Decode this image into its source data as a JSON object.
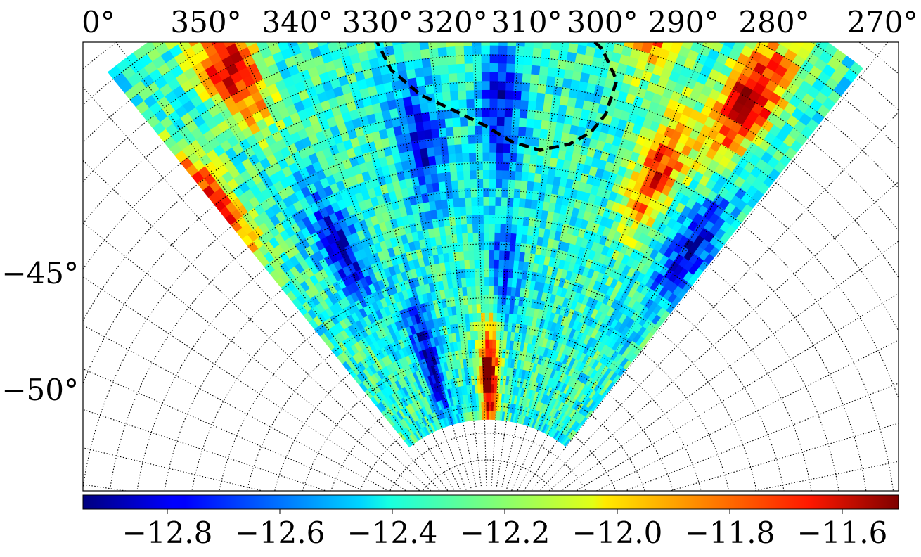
{
  "chart_data": {
    "type": "heatmap",
    "projection": "polar sky map (sector)",
    "longitude_ticks": [
      "0°",
      "350°",
      "340°",
      "330°",
      "320°",
      "310°",
      "300°",
      "290°",
      "280°",
      "270°"
    ],
    "latitude_ticks": [
      "−45°",
      "−50°"
    ],
    "colormap": "jet",
    "colorbar": {
      "orientation": "horizontal",
      "range": [
        -12.95,
        -11.5
      ],
      "ticks": [
        "−12.8",
        "−12.6",
        "−12.4",
        "−12.2",
        "−12.0",
        "−11.8",
        "−11.6"
      ]
    },
    "grid": true,
    "grid_style": "dotted",
    "contour": {
      "style": "dashed",
      "color": "#000000"
    },
    "regions": [
      {
        "name": "high_left_edge",
        "lon": 353,
        "lat": -44,
        "value": -11.5
      },
      {
        "name": "high_upper_left",
        "lon": 342,
        "lat": -40,
        "value": -11.6
      },
      {
        "name": "high_top_center",
        "lon": 318,
        "lat": -38,
        "value": -11.6
      },
      {
        "name": "high_top_right",
        "lon": 295,
        "lat": -39,
        "value": -11.55
      },
      {
        "name": "high_right_edge",
        "lon": 283,
        "lat": -41,
        "value": -11.5
      },
      {
        "name": "high_right_mid",
        "lon": 289,
        "lat": -45,
        "value": -11.7
      },
      {
        "name": "low_left_mid",
        "lon": 340,
        "lat": -48,
        "value": -12.85
      },
      {
        "name": "low_left_lower",
        "lon": 331,
        "lat": -53,
        "value": -12.9
      },
      {
        "name": "low_center",
        "lon": 323,
        "lat": -45,
        "value": -12.8
      },
      {
        "name": "low_center_right",
        "lon": 312,
        "lat": -44,
        "value": -12.8
      },
      {
        "name": "low_right_edge",
        "lon": 279,
        "lat": -47,
        "value": -12.85
      },
      {
        "name": "low_center_lower",
        "lon": 310,
        "lat": -50,
        "value": -12.7
      },
      {
        "name": "hot_spot_lower",
        "lon": 313,
        "lat": -54,
        "value": -11.5
      }
    ]
  }
}
